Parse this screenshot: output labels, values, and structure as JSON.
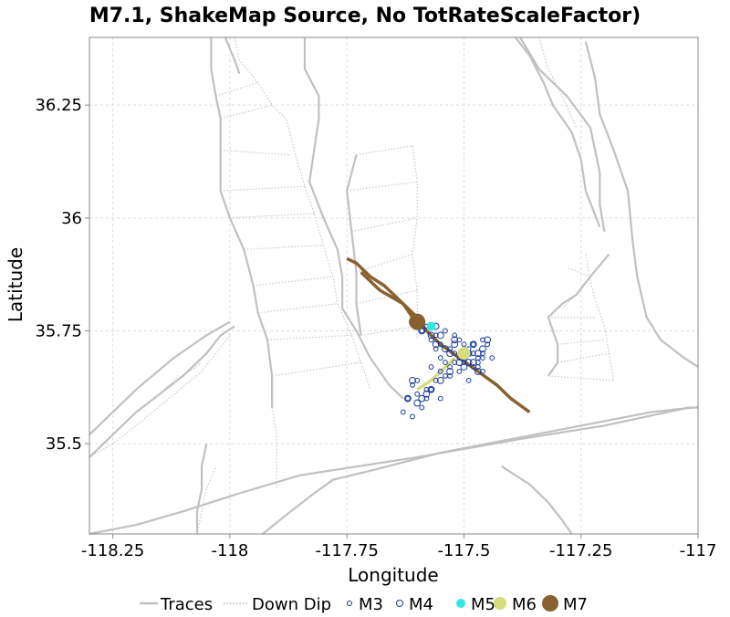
{
  "chart_data": {
    "type": "scatter",
    "title": "M7.1, ShakeMap Source, No TotRateScaleFactor)",
    "xlabel": "Longitude",
    "ylabel": "Latitude",
    "xlim": [
      -118.3,
      -117.0
    ],
    "ylim": [
      35.3,
      36.4
    ],
    "xticks": [
      -118.25,
      -118,
      -117.75,
      -117.5,
      -117.25,
      -117
    ],
    "xtick_labels": [
      "-118.25",
      "-118",
      "-117.75",
      "-117.5",
      "-117.25",
      "-117"
    ],
    "yticks": [
      35.5,
      35.75,
      36,
      36.25
    ],
    "ytick_labels": [
      "35.5",
      "35.75",
      "36",
      "36.25"
    ],
    "grid": true,
    "legend_position": "bottom",
    "legend": [
      {
        "key": "traces",
        "label": "Traces"
      },
      {
        "key": "downdip",
        "label": "Down Dip"
      },
      {
        "key": "m3",
        "label": "M3"
      },
      {
        "key": "m4",
        "label": "M4"
      },
      {
        "key": "m5",
        "label": "M5"
      },
      {
        "key": "m6",
        "label": "M6"
      },
      {
        "key": "m7",
        "label": "M7"
      }
    ],
    "colors": {
      "traces": "#c0c0c0",
      "downdip": "#c8c8c8",
      "m3": "#1a3a9a",
      "m4": "#1a3a9a",
      "m5": "#33e8e0",
      "m6": "#d4dc7c",
      "m7": "#8a6030",
      "rupture": "#8a6030",
      "rupture_sw": "#d4dc7c",
      "grid": "#dddddd"
    },
    "traces": [
      [
        [
          -118.04,
          36.4
        ],
        [
          -118.04,
          36.33
        ],
        [
          -118.03,
          36.27
        ],
        [
          -118.02,
          36.22
        ],
        [
          -118.02,
          36.15
        ],
        [
          -118.02,
          36.06
        ],
        [
          -118.0,
          36.0
        ],
        [
          -117.97,
          35.93
        ],
        [
          -117.95,
          35.85
        ],
        [
          -117.94,
          35.79
        ],
        [
          -117.92,
          35.73
        ],
        [
          -117.91,
          35.65
        ],
        [
          -117.91,
          35.58
        ]
      ],
      [
        [
          -118.01,
          36.4
        ],
        [
          -117.99,
          36.35
        ],
        [
          -117.98,
          36.32
        ]
      ],
      [
        [
          -117.84,
          36.4
        ],
        [
          -117.84,
          36.33
        ],
        [
          -117.81,
          36.27
        ],
        [
          -117.81,
          36.22
        ],
        [
          -117.82,
          36.15
        ],
        [
          -117.83,
          36.08
        ],
        [
          -117.8,
          36.0
        ],
        [
          -117.77,
          35.93
        ],
        [
          -117.76,
          35.87
        ],
        [
          -117.76,
          35.8
        ],
        [
          -117.73,
          35.75
        ],
        [
          -117.7,
          35.69
        ],
        [
          -117.66,
          35.63
        ],
        [
          -117.63,
          35.6
        ]
      ],
      [
        [
          -117.73,
          36.14
        ],
        [
          -117.75,
          36.06
        ],
        [
          -117.74,
          35.97
        ],
        [
          -117.73,
          35.88
        ],
        [
          -117.73,
          35.81
        ],
        [
          -117.72,
          35.74
        ]
      ],
      [
        [
          -117.38,
          36.4
        ],
        [
          -117.34,
          36.33
        ],
        [
          -117.28,
          36.27
        ],
        [
          -117.23,
          36.2
        ],
        [
          -117.21,
          36.1
        ],
        [
          -117.21,
          36.03
        ],
        [
          -117.2,
          35.97
        ]
      ],
      [
        [
          -117.39,
          36.4
        ],
        [
          -117.36,
          36.36
        ],
        [
          -117.33,
          36.3
        ],
        [
          -117.31,
          36.25
        ],
        [
          -117.27,
          36.19
        ],
        [
          -117.25,
          36.13
        ],
        [
          -117.24,
          36.06
        ],
        [
          -117.21,
          35.98
        ]
      ],
      [
        [
          -117.24,
          36.39
        ],
        [
          -117.22,
          36.31
        ],
        [
          -117.21,
          36.23
        ],
        [
          -117.18,
          36.15
        ],
        [
          -117.15,
          36.06
        ],
        [
          -117.14,
          35.95
        ],
        [
          -117.13,
          35.87
        ],
        [
          -117.11,
          35.78
        ],
        [
          -117.08,
          35.73
        ],
        [
          -117.03,
          35.69
        ],
        [
          -117.0,
          35.67
        ]
      ],
      [
        [
          -118.3,
          35.52
        ],
        [
          -118.25,
          35.57
        ],
        [
          -118.2,
          35.62
        ],
        [
          -118.12,
          35.69
        ],
        [
          -118.05,
          35.74
        ],
        [
          -118.0,
          35.77
        ]
      ],
      [
        [
          -118.3,
          35.47
        ],
        [
          -118.25,
          35.52
        ],
        [
          -118.2,
          35.57
        ],
        [
          -118.15,
          35.61
        ],
        [
          -118.1,
          35.65
        ],
        [
          -118.05,
          35.7
        ],
        [
          -118.02,
          35.74
        ],
        [
          -117.99,
          35.76
        ]
      ],
      [
        [
          -118.3,
          35.3
        ],
        [
          -118.2,
          35.32
        ],
        [
          -118.1,
          35.35
        ],
        [
          -117.98,
          35.39
        ],
        [
          -117.85,
          35.43
        ],
        [
          -117.6,
          35.47
        ],
        [
          -117.38,
          35.51
        ],
        [
          -117.2,
          35.54
        ],
        [
          -117.02,
          35.58
        ],
        [
          -117.0,
          35.58
        ]
      ],
      [
        [
          -117.93,
          35.3
        ],
        [
          -117.87,
          35.35
        ],
        [
          -117.82,
          35.39
        ],
        [
          -117.78,
          35.42
        ],
        [
          -117.7,
          35.44
        ],
        [
          -117.55,
          35.48
        ],
        [
          -117.3,
          35.53
        ],
        [
          -117.1,
          35.57
        ],
        [
          -117.01,
          35.58
        ]
      ],
      [
        [
          -118.07,
          35.3
        ],
        [
          -118.07,
          35.35
        ],
        [
          -118.06,
          35.4
        ],
        [
          -118.06,
          35.45
        ],
        [
          -118.05,
          35.5
        ]
      ],
      [
        [
          -117.19,
          35.92
        ],
        [
          -117.23,
          35.87
        ],
        [
          -117.26,
          35.83
        ],
        [
          -117.29,
          35.81
        ],
        [
          -117.32,
          35.78
        ],
        [
          -117.3,
          35.72
        ],
        [
          -117.3,
          35.68
        ],
        [
          -117.32,
          35.65
        ]
      ],
      [
        [
          -117.42,
          35.45
        ],
        [
          -117.36,
          35.41
        ],
        [
          -117.32,
          35.37
        ],
        [
          -117.29,
          35.33
        ],
        [
          -117.27,
          35.3
        ]
      ]
    ],
    "down_dip": [
      [
        [
          -117.99,
          36.4
        ],
        [
          -117.98,
          36.35
        ],
        [
          -117.94,
          36.3
        ],
        [
          -117.91,
          36.25
        ],
        [
          -117.88,
          36.22
        ],
        [
          -117.86,
          36.14
        ],
        [
          -117.84,
          36.07
        ],
        [
          -117.82,
          36.01
        ],
        [
          -117.8,
          35.94
        ],
        [
          -117.78,
          35.87
        ],
        [
          -117.77,
          35.81
        ],
        [
          -117.74,
          35.74
        ],
        [
          -117.72,
          35.68
        ],
        [
          -117.7,
          35.62
        ]
      ],
      [
        [
          -117.61,
          36.16
        ],
        [
          -117.6,
          36.08
        ],
        [
          -117.6,
          36.0
        ],
        [
          -117.61,
          35.92
        ],
        [
          -117.6,
          35.84
        ],
        [
          -117.6,
          35.78
        ],
        [
          -117.6,
          35.73
        ]
      ],
      [
        [
          -117.34,
          36.4
        ],
        [
          -117.32,
          36.33
        ],
        [
          -117.29,
          36.27
        ],
        [
          -117.26,
          36.2
        ]
      ],
      [
        [
          -117.24,
          35.92
        ],
        [
          -117.23,
          35.86
        ],
        [
          -117.22,
          35.82
        ],
        [
          -117.2,
          35.76
        ],
        [
          -117.19,
          35.7
        ],
        [
          -117.18,
          35.64
        ]
      ],
      [
        [
          -118.3,
          35.47
        ],
        [
          -118.25,
          35.5
        ],
        [
          -118.2,
          35.54
        ],
        [
          -118.13,
          35.6
        ],
        [
          -118.06,
          35.66
        ],
        [
          -118.0,
          35.74
        ]
      ],
      [
        [
          -117.91,
          35.58
        ],
        [
          -117.9,
          35.52
        ],
        [
          -117.9,
          35.46
        ],
        [
          -117.9,
          35.4
        ]
      ],
      [
        [
          -118.07,
          35.3
        ],
        [
          -118.06,
          35.35
        ],
        [
          -118.05,
          35.4
        ],
        [
          -118.03,
          35.45
        ]
      ]
    ],
    "down_dip_rungs": [
      [
        [
          -118.03,
          36.27
        ],
        [
          -117.94,
          36.3
        ]
      ],
      [
        [
          -118.02,
          36.22
        ],
        [
          -117.91,
          36.25
        ]
      ],
      [
        [
          -118.02,
          36.15
        ],
        [
          -117.87,
          36.14
        ]
      ],
      [
        [
          -118.02,
          36.06
        ],
        [
          -117.84,
          36.07
        ]
      ],
      [
        [
          -118.0,
          36.0
        ],
        [
          -117.82,
          36.01
        ]
      ],
      [
        [
          -117.97,
          35.93
        ],
        [
          -117.8,
          35.94
        ]
      ],
      [
        [
          -117.95,
          35.85
        ],
        [
          -117.78,
          35.87
        ]
      ],
      [
        [
          -117.94,
          35.79
        ],
        [
          -117.77,
          35.81
        ]
      ],
      [
        [
          -117.92,
          35.73
        ],
        [
          -117.74,
          35.74
        ]
      ],
      [
        [
          -117.91,
          35.65
        ],
        [
          -117.72,
          35.68
        ]
      ],
      [
        [
          -117.75,
          36.06
        ],
        [
          -117.6,
          36.08
        ]
      ],
      [
        [
          -117.74,
          35.97
        ],
        [
          -117.6,
          36.0
        ]
      ],
      [
        [
          -117.73,
          35.88
        ],
        [
          -117.61,
          35.92
        ]
      ],
      [
        [
          -117.73,
          35.81
        ],
        [
          -117.6,
          35.84
        ]
      ],
      [
        [
          -117.72,
          35.74
        ],
        [
          -117.6,
          35.76
        ]
      ],
      [
        [
          -117.73,
          36.14
        ],
        [
          -117.61,
          36.16
        ]
      ],
      [
        [
          -118.25,
          35.52
        ],
        [
          -118.22,
          35.55
        ]
      ],
      [
        [
          -118.2,
          35.57
        ],
        [
          -118.16,
          35.6
        ]
      ],
      [
        [
          -118.15,
          35.61
        ],
        [
          -118.11,
          35.65
        ]
      ],
      [
        [
          -118.1,
          35.65
        ],
        [
          -118.06,
          35.68
        ]
      ],
      [
        [
          -117.23,
          35.87
        ],
        [
          -117.28,
          35.89
        ]
      ],
      [
        [
          -117.26,
          35.83
        ],
        [
          -117.29,
          35.8
        ]
      ],
      [
        [
          -117.32,
          35.78
        ],
        [
          -117.22,
          35.78
        ]
      ],
      [
        [
          -117.3,
          35.72
        ],
        [
          -117.2,
          35.73
        ]
      ],
      [
        [
          -117.3,
          35.68
        ],
        [
          -117.19,
          35.7
        ]
      ],
      [
        [
          -117.32,
          35.65
        ],
        [
          -117.18,
          35.64
        ]
      ]
    ],
    "rupture": [
      [
        [
          -117.75,
          35.91
        ],
        [
          -117.73,
          35.9
        ],
        [
          -117.7,
          35.87
        ],
        [
          -117.67,
          35.85
        ],
        [
          -117.65,
          35.83
        ],
        [
          -117.62,
          35.8
        ],
        [
          -117.6,
          35.78
        ],
        [
          -117.58,
          35.75
        ],
        [
          -117.55,
          35.72
        ],
        [
          -117.51,
          35.69
        ],
        [
          -117.47,
          35.66
        ],
        [
          -117.43,
          35.63
        ],
        [
          -117.4,
          35.6
        ],
        [
          -117.36,
          35.57
        ]
      ],
      [
        [
          -117.72,
          35.88
        ],
        [
          -117.68,
          35.84
        ],
        [
          -117.63,
          35.81
        ],
        [
          -117.61,
          35.78
        ],
        [
          -117.6,
          35.77
        ]
      ]
    ],
    "rupture_sw": [
      [
        -117.6,
        35.62
      ],
      [
        -117.57,
        35.64
      ],
      [
        -117.55,
        35.66
      ],
      [
        -117.53,
        35.68
      ],
      [
        -117.52,
        35.69
      ]
    ],
    "m3": {
      "x": [
        -117.63,
        -117.61,
        -117.57,
        -117.58,
        -117.56,
        -117.55,
        -117.54,
        -117.53,
        -117.52,
        -117.51,
        -117.5,
        -117.49,
        -117.48,
        -117.47,
        -117.46,
        -117.45,
        -117.46,
        -117.47,
        -117.48,
        -117.49,
        -117.5,
        -117.51,
        -117.52,
        -117.53,
        -117.54,
        -117.55,
        -117.56,
        -117.57,
        -117.58,
        -117.59,
        -117.6,
        -117.61,
        -117.62,
        -117.44,
        -117.46,
        -117.55,
        -117.57,
        -117.53,
        -117.51,
        -117.49,
        -117.48,
        -117.5,
        -117.52,
        -117.54,
        -117.56,
        -117.58,
        -117.6,
        -117.59,
        -117.55,
        -117.47,
        -117.46
      ],
      "y": [
        35.57,
        35.56,
        35.62,
        35.6,
        35.64,
        35.66,
        35.65,
        35.67,
        35.68,
        35.69,
        35.7,
        35.71,
        35.72,
        35.68,
        35.7,
        35.72,
        35.66,
        35.69,
        35.67,
        35.7,
        35.68,
        35.73,
        35.74,
        35.71,
        35.75,
        35.72,
        35.74,
        35.73,
        35.76,
        35.75,
        35.64,
        35.63,
        35.6,
        35.69,
        35.73,
        35.69,
        35.67,
        35.65,
        35.66,
        35.64,
        35.7,
        35.72,
        35.7,
        35.68,
        35.71,
        35.62,
        35.61,
        35.58,
        35.6,
        35.67,
        35.69
      ]
    },
    "m4": {
      "x": [
        -117.61,
        -117.6,
        -117.59,
        -117.57,
        -117.56,
        -117.54,
        -117.53,
        -117.52,
        -117.5,
        -117.49,
        -117.48,
        -117.47,
        -117.46,
        -117.45,
        -117.47,
        -117.5,
        -117.53,
        -117.55,
        -117.57,
        -117.59,
        -117.6,
        -117.62,
        -117.61,
        -117.55,
        -117.52,
        -117.49,
        -117.48,
        -117.51,
        -117.56,
        -117.58
      ],
      "y": [
        35.77,
        35.76,
        35.75,
        35.74,
        35.72,
        35.71,
        35.7,
        35.72,
        35.69,
        35.68,
        35.68,
        35.66,
        35.71,
        35.73,
        35.7,
        35.67,
        35.66,
        35.64,
        35.62,
        35.6,
        35.59,
        35.6,
        35.64,
        35.74,
        35.73,
        35.7,
        35.72,
        35.68,
        35.76,
        35.61
      ]
    },
    "m5": {
      "x": [
        -117.57
      ],
      "y": [
        35.76
      ]
    },
    "m6": {
      "x": [
        -117.5
      ],
      "y": [
        35.7
      ]
    },
    "m7": {
      "x": [
        -117.6
      ],
      "y": [
        35.77
      ]
    }
  }
}
